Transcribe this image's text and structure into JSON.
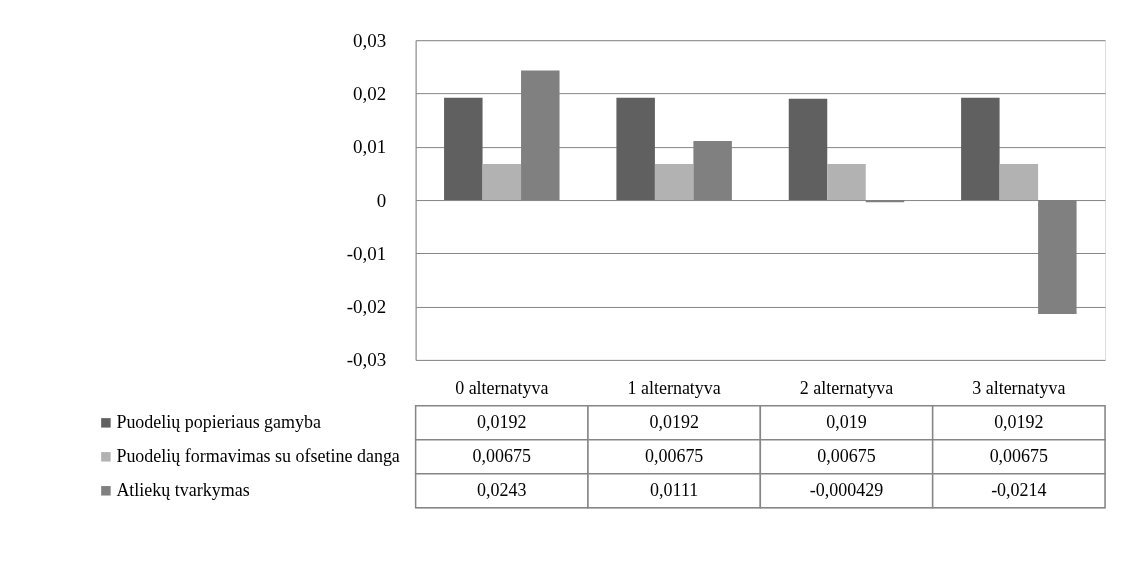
{
  "chart_data": {
    "type": "bar",
    "categories": [
      "0 alternatyva",
      "1 alternatyva",
      "2 alternatyva",
      "3 alternatyva"
    ],
    "series": [
      {
        "name": "Puodelių popieriaus gamyba",
        "color": "#606060",
        "values": [
          0.0192,
          0.0192,
          0.019,
          0.0192
        ],
        "value_labels": [
          "0,0192",
          "0,0192",
          "0,019",
          "0,0192"
        ]
      },
      {
        "name": "Puodelių formavimas su ofsetine danga",
        "color": "#b2b2b2",
        "values": [
          0.00675,
          0.00675,
          0.00675,
          0.00675
        ],
        "value_labels": [
          "0,00675",
          "0,00675",
          "0,00675",
          "0,00675"
        ]
      },
      {
        "name": "Atliekų tvarkymas",
        "color": "#808080",
        "values": [
          0.0243,
          0.0111,
          -0.000429,
          -0.0214
        ],
        "value_labels": [
          "0,0243",
          "0,0111",
          "-0,000429",
          "-0,0214"
        ]
      }
    ],
    "ylim": [
      -0.03,
      0.03
    ],
    "yticks": [
      {
        "value": -0.03,
        "label": "-0,03"
      },
      {
        "value": -0.02,
        "label": "-0,02"
      },
      {
        "value": -0.01,
        "label": "-0,01"
      },
      {
        "value": 0,
        "label": "0"
      },
      {
        "value": 0.01,
        "label": "0,01"
      },
      {
        "value": 0.02,
        "label": "0,02"
      },
      {
        "value": 0.03,
        "label": "0,03"
      }
    ],
    "grid": "y",
    "legend": "bottom left"
  }
}
